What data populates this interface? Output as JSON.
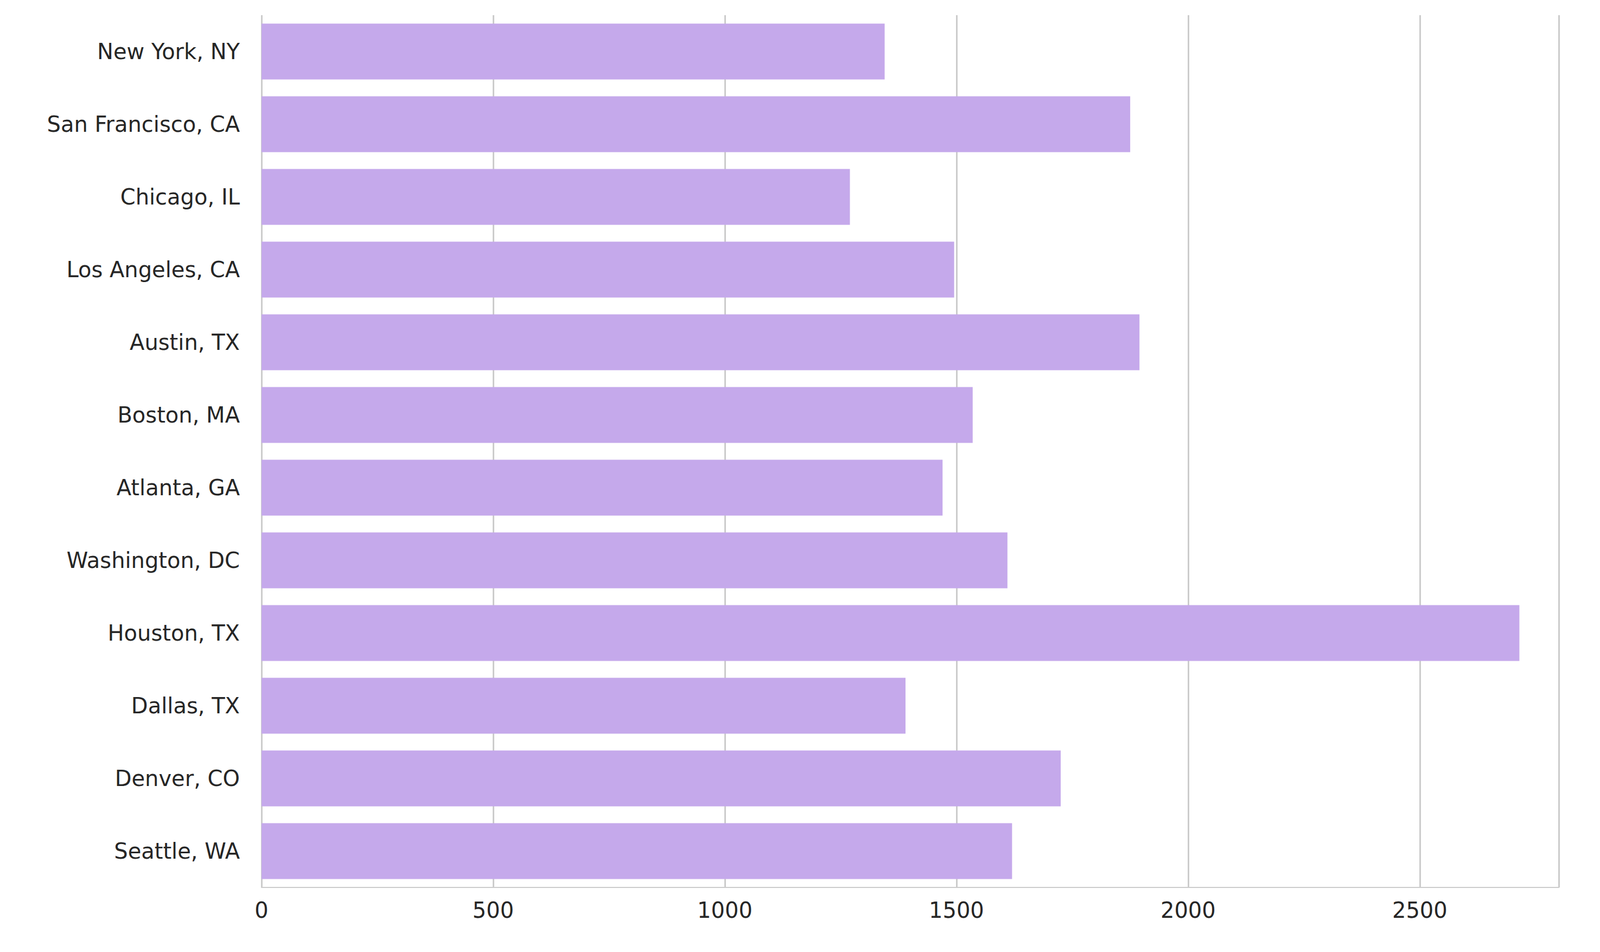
{
  "chart_data": {
    "type": "bar",
    "orientation": "horizontal",
    "categories": [
      "New York, NY",
      "San Francisco, CA",
      "Chicago, IL",
      "Los Angeles, CA",
      "Austin, TX",
      "Boston, MA",
      "Atlanta, GA",
      "Washington, DC",
      "Houston, TX",
      "Dallas, TX",
      "Denver, CO",
      "Seattle, WA"
    ],
    "values": [
      1345,
      1875,
      1270,
      1495,
      1895,
      1535,
      1470,
      1610,
      2715,
      1390,
      1725,
      1620
    ],
    "color": "#c5a9eb",
    "xlim": [
      0,
      2800
    ],
    "xticks": [
      0,
      500,
      1000,
      1500,
      2000,
      2500
    ],
    "grid": true
  }
}
